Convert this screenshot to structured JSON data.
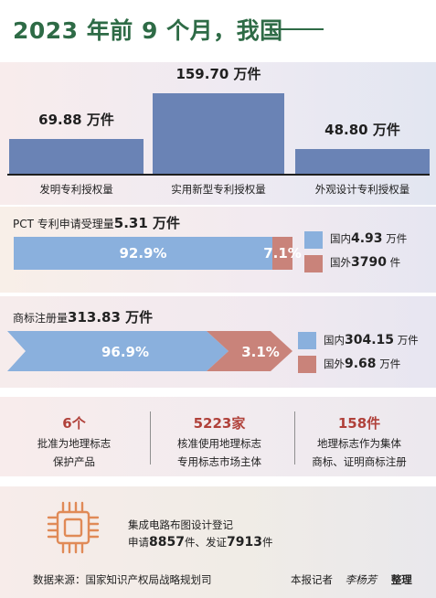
{
  "title": "2023 年前 9 个月，我国",
  "chart_data": {
    "type": "bar",
    "categories": [
      "发明专利授权量",
      "实用新型专利授权量",
      "外观设计专利授权量"
    ],
    "values": [
      69.88,
      159.7,
      48.8
    ],
    "value_labels": [
      "69.88 万件",
      "159.70 万件",
      "48.80 万件"
    ],
    "ylim": [
      0,
      160
    ],
    "bar_color": "#6a83b5"
  },
  "pct": {
    "label": "PCT 专利申请受理量",
    "total": "5.31 万件",
    "shares": [
      92.9,
      7.1
    ],
    "share_labels": [
      "92.9%",
      "7.1%"
    ],
    "domestic": {
      "label": "国内",
      "value": "4.93",
      "unit": "万件"
    },
    "foreign": {
      "label": "国外",
      "value": "3790",
      "unit": "件"
    }
  },
  "trademark": {
    "label": "商标注册量",
    "total": "313.83 万件",
    "shares": [
      96.9,
      3.1
    ],
    "share_labels": [
      "96.9%",
      "3.1%"
    ],
    "domestic": {
      "label": "国内",
      "value": "304.15",
      "unit": "万件"
    },
    "foreign": {
      "label": "国外",
      "value": "9.68",
      "unit": "万件"
    }
  },
  "stats": [
    {
      "big": "6个",
      "line1": "批准为地理标志",
      "line2": "保护产品"
    },
    {
      "big": "5223家",
      "line1": "核准使用地理标志",
      "line2": "专用标志市场主体"
    },
    {
      "big": "158件",
      "line1": "地理标志作为集体",
      "line2": "商标、证明商标注册"
    }
  ],
  "ic": {
    "line1": "集成电路布图设计登记",
    "apply_label": "申请",
    "apply_value": "8857",
    "mid": "件、发证",
    "issue_value": "7913",
    "unit": "件"
  },
  "footer": {
    "source": "数据来源：国家知识产权局战略规划司",
    "reporter_label": "本报记者",
    "reporter_name": "李杨芳",
    "action": "整理"
  },
  "colors": {
    "title": "#2e6b46",
    "blue": "#8ab0dd",
    "red": "#c9837a",
    "bar": "#6a83b5",
    "accent": "#b0413a"
  }
}
